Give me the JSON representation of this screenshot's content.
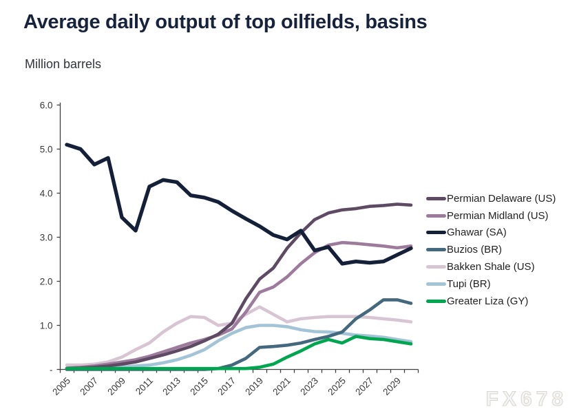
{
  "header": {
    "title": "Average daily output of top oilfields, basins",
    "subtitle": "Million barrels"
  },
  "watermark": "FX678",
  "chart_data": {
    "type": "line",
    "title": "Average daily output of top oilfields, basins",
    "subtitle": "Million barrels",
    "ylabel": "Million barrels",
    "xlabel": "",
    "ylim": [
      0,
      6
    ],
    "x_range": [
      2005,
      2030
    ],
    "grid": false,
    "legend_position": "right",
    "x": [
      2005,
      2006,
      2007,
      2008,
      2009,
      2010,
      2011,
      2012,
      2013,
      2014,
      2015,
      2016,
      2017,
      2018,
      2019,
      2020,
      2021,
      2022,
      2023,
      2024,
      2025,
      2026,
      2027,
      2028,
      2029,
      2030
    ],
    "x_tick_labels": [
      "2005",
      "2007",
      "2009",
      "2011",
      "2013",
      "2015",
      "2017",
      "2019",
      "2021",
      "2023",
      "2025",
      "2027",
      "2029"
    ],
    "y_ticks": [
      {
        "value": 6,
        "label": "6.0"
      },
      {
        "value": 5,
        "label": "5.0"
      },
      {
        "value": 4,
        "label": "4.0"
      },
      {
        "value": 3,
        "label": "3.0"
      },
      {
        "value": 2,
        "label": "2.0"
      },
      {
        "value": 1,
        "label": "1.0"
      },
      {
        "value": 0,
        "label": "-"
      }
    ],
    "series": [
      {
        "name": "Permian Delaware (US)",
        "color": "#5e4a63",
        "z": 4,
        "values": [
          0.02,
          0.03,
          0.05,
          0.08,
          0.12,
          0.17,
          0.25,
          0.33,
          0.42,
          0.52,
          0.65,
          0.8,
          1.05,
          1.6,
          2.05,
          2.3,
          2.75,
          3.1,
          3.4,
          3.55,
          3.62,
          3.65,
          3.7,
          3.72,
          3.75,
          3.73
        ]
      },
      {
        "name": "Permian Midland (US)",
        "color": "#9d7b9c",
        "z": 3,
        "values": [
          0.03,
          0.05,
          0.08,
          0.12,
          0.17,
          0.22,
          0.3,
          0.4,
          0.5,
          0.6,
          0.68,
          0.78,
          0.92,
          1.3,
          1.75,
          1.87,
          2.1,
          2.4,
          2.65,
          2.82,
          2.88,
          2.86,
          2.83,
          2.8,
          2.76,
          2.8
        ]
      },
      {
        "name": "Ghawar (SA)",
        "color": "#141f38",
        "z": 7,
        "values": [
          5.1,
          5.0,
          4.65,
          4.8,
          3.45,
          3.15,
          4.15,
          4.3,
          4.25,
          3.95,
          3.9,
          3.8,
          3.6,
          3.42,
          3.25,
          3.05,
          2.95,
          3.15,
          2.7,
          2.78,
          2.4,
          2.45,
          2.42,
          2.45,
          2.6,
          2.75
        ]
      },
      {
        "name": "Buzios (BR)",
        "color": "#44687d",
        "z": 5,
        "values": [
          0,
          0,
          0,
          0,
          0,
          0,
          0,
          0,
          0,
          0,
          0,
          0.02,
          0.1,
          0.25,
          0.5,
          0.52,
          0.55,
          0.6,
          0.68,
          0.75,
          0.85,
          1.15,
          1.35,
          1.58,
          1.58,
          1.5
        ]
      },
      {
        "name": "Bakken Shale (US)",
        "color": "#d8c5d3",
        "z": 1,
        "values": [
          0.1,
          0.1,
          0.12,
          0.17,
          0.28,
          0.45,
          0.6,
          0.85,
          1.05,
          1.2,
          1.18,
          1.0,
          1.05,
          1.25,
          1.42,
          1.25,
          1.08,
          1.15,
          1.18,
          1.2,
          1.2,
          1.2,
          1.18,
          1.15,
          1.12,
          1.08
        ]
      },
      {
        "name": "Tupi (BR)",
        "color": "#a3c3d7",
        "z": 2,
        "values": [
          0.02,
          0.02,
          0.02,
          0.03,
          0.05,
          0.08,
          0.1,
          0.15,
          0.22,
          0.32,
          0.45,
          0.65,
          0.82,
          0.95,
          1.0,
          1.0,
          0.97,
          0.9,
          0.86,
          0.85,
          0.82,
          0.78,
          0.76,
          0.73,
          0.68,
          0.63
        ]
      },
      {
        "name": "Greater Liza (GY)",
        "color": "#00a64f",
        "z": 6,
        "values": [
          0.02,
          0.02,
          0.02,
          0.02,
          0.02,
          0.02,
          0.02,
          0.02,
          0.02,
          0.02,
          0.02,
          0.02,
          0.02,
          0.02,
          0.05,
          0.12,
          0.28,
          0.42,
          0.58,
          0.68,
          0.6,
          0.75,
          0.7,
          0.68,
          0.63,
          0.58
        ]
      }
    ]
  }
}
